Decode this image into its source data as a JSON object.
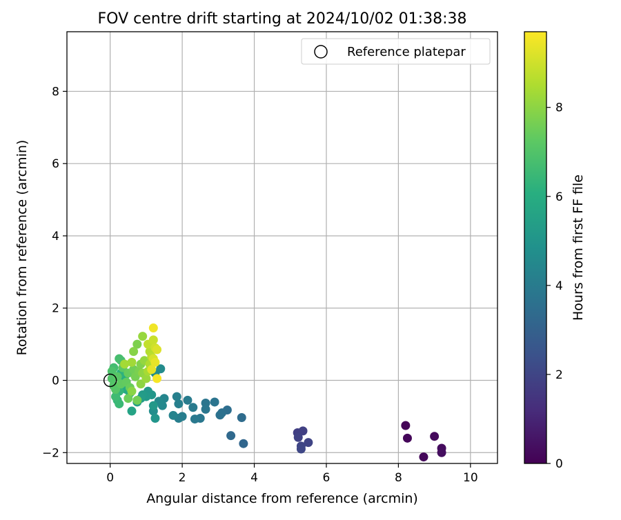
{
  "chart_data": {
    "type": "scatter",
    "title": "FOV centre drift starting at 2024/10/02 01:38:38",
    "xlabel": "Angular distance from reference (arcmin)",
    "ylabel": "Rotation from reference (arcmin)",
    "xlim": [
      -1.2,
      10.75
    ],
    "ylim": [
      -2.3,
      9.65
    ],
    "xticks": [
      0,
      2,
      4,
      6,
      8,
      10
    ],
    "yticks": [
      -2,
      0,
      2,
      4,
      6,
      8
    ],
    "grid": true,
    "legend": {
      "placement": "top-right",
      "entries": [
        "Reference platepar"
      ]
    },
    "reference_point": {
      "x": 0,
      "y": 0
    },
    "colorbar": {
      "label": "Hours from first FF file",
      "range": [
        0,
        9.7
      ],
      "ticks": [
        0,
        2,
        4,
        6,
        8
      ],
      "colormap": "viridis"
    },
    "series": [
      {
        "points": [
          {
            "x": 8.2,
            "y": -1.25,
            "c": 0.1
          },
          {
            "x": 8.25,
            "y": -1.6,
            "c": 0.15
          },
          {
            "x": 8.7,
            "y": -2.12,
            "c": 0.2
          },
          {
            "x": 9.0,
            "y": -1.55,
            "c": 0.25
          },
          {
            "x": 9.2,
            "y": -1.88,
            "c": 0.3
          },
          {
            "x": 9.2,
            "y": -2.0,
            "c": 0.35
          },
          {
            "x": 5.2,
            "y": -1.45,
            "c": 1.8
          },
          {
            "x": 5.35,
            "y": -1.4,
            "c": 1.85
          },
          {
            "x": 5.22,
            "y": -1.58,
            "c": 1.9
          },
          {
            "x": 5.5,
            "y": -1.72,
            "c": 1.95
          },
          {
            "x": 5.3,
            "y": -1.82,
            "c": 2.0
          },
          {
            "x": 5.3,
            "y": -1.9,
            "c": 2.05
          },
          {
            "x": 3.7,
            "y": -1.75,
            "c": 3.2
          },
          {
            "x": 3.35,
            "y": -1.53,
            "c": 3.3
          },
          {
            "x": 3.65,
            "y": -1.03,
            "c": 3.4
          },
          {
            "x": 3.25,
            "y": -0.82,
            "c": 3.5
          },
          {
            "x": 3.1,
            "y": -0.9,
            "c": 3.55
          },
          {
            "x": 3.05,
            "y": -0.96,
            "c": 3.6
          },
          {
            "x": 2.9,
            "y": -0.6,
            "c": 3.7
          },
          {
            "x": 2.65,
            "y": -0.63,
            "c": 3.75
          },
          {
            "x": 2.65,
            "y": -0.8,
            "c": 3.8
          },
          {
            "x": 2.5,
            "y": -1.05,
            "c": 3.85
          },
          {
            "x": 2.35,
            "y": -1.07,
            "c": 3.9
          },
          {
            "x": 2.3,
            "y": -0.75,
            "c": 3.95
          },
          {
            "x": 2.15,
            "y": -0.55,
            "c": 4.0
          },
          {
            "x": 2.0,
            "y": -1.0,
            "c": 4.05
          },
          {
            "x": 1.9,
            "y": -1.05,
            "c": 4.1
          },
          {
            "x": 1.9,
            "y": -0.65,
            "c": 4.15
          },
          {
            "x": 1.85,
            "y": -0.45,
            "c": 4.2
          },
          {
            "x": 1.75,
            "y": -0.97,
            "c": 4.3
          },
          {
            "x": 1.5,
            "y": -0.5,
            "c": 4.4
          },
          {
            "x": 1.45,
            "y": -0.7,
            "c": 4.5
          },
          {
            "x": 1.35,
            "y": -0.58,
            "c": 4.55
          },
          {
            "x": 1.4,
            "y": 0.32,
            "c": 4.6
          },
          {
            "x": 1.25,
            "y": 0.2,
            "c": 4.65
          },
          {
            "x": 1.2,
            "y": -0.85,
            "c": 4.7
          },
          {
            "x": 1.25,
            "y": -1.05,
            "c": 5.0
          },
          {
            "x": 1.15,
            "y": -0.4,
            "c": 5.05
          },
          {
            "x": 1.05,
            "y": -0.3,
            "c": 5.1
          },
          {
            "x": 1.2,
            "y": -0.7,
            "c": 5.15
          },
          {
            "x": 1.0,
            "y": -0.45,
            "c": 5.2
          },
          {
            "x": 0.9,
            "y": -0.4,
            "c": 5.25
          },
          {
            "x": 0.85,
            "y": -0.5,
            "c": 5.3
          },
          {
            "x": 0.75,
            "y": -0.6,
            "c": 5.35
          },
          {
            "x": 0.6,
            "y": -0.85,
            "c": 5.6
          },
          {
            "x": 0.55,
            "y": -0.35,
            "c": 5.7
          },
          {
            "x": 0.45,
            "y": -0.25,
            "c": 5.9
          },
          {
            "x": 0.4,
            "y": 0.1,
            "c": 6.0
          },
          {
            "x": 0.3,
            "y": 0.2,
            "c": 6.2
          },
          {
            "x": 0.25,
            "y": -0.3,
            "c": 6.3
          },
          {
            "x": 0.2,
            "y": -0.55,
            "c": 6.4
          },
          {
            "x": 0.25,
            "y": -0.65,
            "c": 6.5
          },
          {
            "x": 0.15,
            "y": -0.45,
            "c": 6.6
          },
          {
            "x": 0.1,
            "y": 0.35,
            "c": 6.7
          },
          {
            "x": 0.25,
            "y": 0.6,
            "c": 6.75
          },
          {
            "x": 0.3,
            "y": 0.55,
            "c": 6.8
          },
          {
            "x": 0.05,
            "y": 0.25,
            "c": 6.9
          },
          {
            "x": 0.05,
            "y": 0.05,
            "c": 7.0
          },
          {
            "x": 0.1,
            "y": -0.15,
            "c": 7.05
          },
          {
            "x": 0.15,
            "y": -0.25,
            "c": 7.1
          },
          {
            "x": 0.2,
            "y": 0.1,
            "c": 7.15
          },
          {
            "x": 0.35,
            "y": 0.35,
            "c": 7.2
          },
          {
            "x": 0.3,
            "y": -0.1,
            "c": 7.3
          },
          {
            "x": 0.45,
            "y": -0.05,
            "c": 7.35
          },
          {
            "x": 0.5,
            "y": 0.2,
            "c": 7.4
          },
          {
            "x": 0.55,
            "y": -0.2,
            "c": 7.45
          },
          {
            "x": 0.5,
            "y": -0.5,
            "c": 7.5
          },
          {
            "x": 0.65,
            "y": 0.3,
            "c": 7.55
          },
          {
            "x": 0.75,
            "y": -0.55,
            "c": 7.6
          },
          {
            "x": 0.7,
            "y": 0.1,
            "c": 7.65
          },
          {
            "x": 0.8,
            "y": 0.25,
            "c": 7.7
          },
          {
            "x": 0.75,
            "y": 1.0,
            "c": 7.75
          },
          {
            "x": 0.85,
            "y": 0.45,
            "c": 7.8
          },
          {
            "x": 0.65,
            "y": 0.8,
            "c": 7.9
          },
          {
            "x": 0.6,
            "y": -0.3,
            "c": 7.95
          },
          {
            "x": 0.85,
            "y": -0.1,
            "c": 8.0
          },
          {
            "x": 0.9,
            "y": 0.2,
            "c": 8.05
          },
          {
            "x": 0.95,
            "y": 0.55,
            "c": 8.1
          },
          {
            "x": 0.9,
            "y": 1.22,
            "c": 8.15
          },
          {
            "x": 1.0,
            "y": 0.05,
            "c": 8.2
          },
          {
            "x": 0.6,
            "y": 0.5,
            "c": 8.3
          },
          {
            "x": 0.4,
            "y": 0.45,
            "c": 8.35
          },
          {
            "x": 1.05,
            "y": 0.25,
            "c": 8.4
          },
          {
            "x": 1.1,
            "y": 0.45,
            "c": 8.5
          },
          {
            "x": 1.1,
            "y": 0.8,
            "c": 8.6
          },
          {
            "x": 1.15,
            "y": 0.65,
            "c": 8.7
          },
          {
            "x": 1.05,
            "y": 1.0,
            "c": 8.8
          },
          {
            "x": 1.2,
            "y": 1.12,
            "c": 8.9
          },
          {
            "x": 1.25,
            "y": 0.9,
            "c": 9.0
          },
          {
            "x": 1.2,
            "y": 0.6,
            "c": 9.1
          },
          {
            "x": 1.3,
            "y": 0.85,
            "c": 9.2
          },
          {
            "x": 1.15,
            "y": 0.3,
            "c": 9.3
          },
          {
            "x": 1.25,
            "y": 0.5,
            "c": 9.35
          },
          {
            "x": 1.2,
            "y": 1.45,
            "c": 9.5
          },
          {
            "x": 1.3,
            "y": 0.05,
            "c": 9.6
          }
        ]
      }
    ]
  }
}
